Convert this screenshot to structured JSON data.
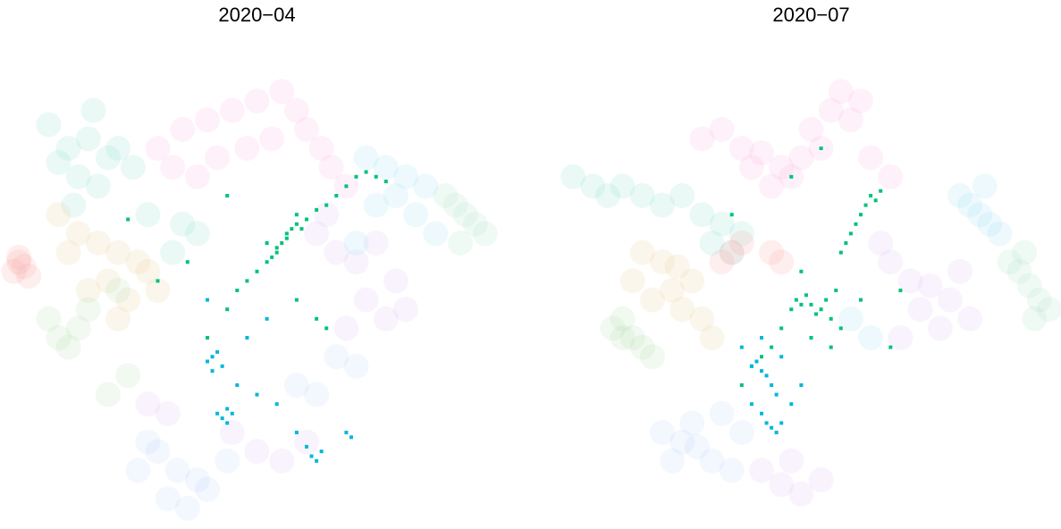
{
  "chart_data": [
    {
      "type": "scatter",
      "title": "2020−04",
      "xlim": [
        0,
        100
      ],
      "ylim": [
        0,
        100
      ],
      "series": [
        {
          "color": "#7fdcc8",
          "opacity": 0.16,
          "x": [
            8,
            12,
            16,
            20,
            14,
            18,
            10,
            22,
            25,
            17,
            13,
            28,
            35,
            38,
            33
          ],
          "y": [
            85,
            80,
            82,
            78,
            74,
            72,
            77,
            80,
            76,
            88,
            68,
            66,
            64,
            62,
            58
          ]
        },
        {
          "color": "#f7a8e0",
          "opacity": 0.16,
          "x": [
            30,
            35,
            40,
            45,
            50,
            55,
            58,
            60,
            42,
            48,
            38,
            53,
            63,
            65,
            68,
            33
          ],
          "y": [
            80,
            84,
            86,
            88,
            90,
            92,
            88,
            84,
            78,
            80,
            74,
            82,
            80,
            76,
            72,
            76
          ]
        },
        {
          "color": "#e8c48a",
          "opacity": 0.16,
          "x": [
            10,
            14,
            18,
            22,
            26,
            20,
            16,
            24,
            28,
            12,
            30,
            22
          ],
          "y": [
            66,
            62,
            60,
            58,
            56,
            52,
            50,
            48,
            54,
            58,
            50,
            44
          ]
        },
        {
          "color": "#a8dca0",
          "opacity": 0.16,
          "x": [
            8,
            10,
            12,
            14,
            16,
            22,
            24,
            20
          ],
          "y": [
            44,
            40,
            38,
            42,
            46,
            50,
            32,
            28
          ]
        },
        {
          "color": "#f8a8a8",
          "opacity": 0.2,
          "x": [
            1,
            2,
            3,
            4,
            2
          ],
          "y": [
            54,
            56,
            55,
            53,
            57
          ]
        },
        {
          "color": "#dcb4f4",
          "opacity": 0.16,
          "x": [
            62,
            66,
            70,
            74,
            78,
            72,
            76,
            80,
            68,
            64,
            45,
            50,
            55,
            60,
            28,
            32
          ],
          "y": [
            62,
            58,
            56,
            60,
            52,
            48,
            44,
            46,
            42,
            66,
            20,
            16,
            14,
            18,
            26,
            24
          ]
        },
        {
          "color": "#90d8f0",
          "opacity": 0.16,
          "x": [
            72,
            76,
            80,
            84,
            78,
            82,
            74,
            70,
            86
          ],
          "y": [
            78,
            76,
            74,
            72,
            70,
            66,
            68,
            60,
            62
          ]
        },
        {
          "color": "#a0e0c0",
          "opacity": 0.16,
          "x": [
            88,
            90,
            92,
            94,
            96,
            91
          ],
          "y": [
            70,
            68,
            66,
            64,
            62,
            60
          ]
        },
        {
          "color": "#b4ccf8",
          "opacity": 0.16,
          "x": [
            30,
            34,
            38,
            32,
            36,
            28,
            40,
            44,
            26,
            58,
            62,
            66,
            70
          ],
          "y": [
            16,
            12,
            10,
            6,
            4,
            18,
            8,
            14,
            12,
            30,
            28,
            36,
            34
          ]
        },
        {
          "color": "#00c27a",
          "opacity": 1,
          "x": [
            52,
            53,
            54,
            55,
            56,
            57,
            58,
            59,
            60,
            54,
            50,
            48,
            46,
            52,
            56,
            58,
            62,
            64,
            66,
            68,
            70,
            72,
            74,
            76,
            44,
            40,
            36,
            30,
            24,
            44,
            58,
            62,
            64
          ],
          "y": [
            56,
            57,
            59,
            60,
            62,
            63,
            64,
            63,
            65,
            58,
            54,
            52,
            50,
            60,
            61,
            66,
            67,
            68,
            70,
            72,
            74,
            75,
            74,
            73,
            46,
            40,
            56,
            52,
            65,
            70,
            48,
            44,
            42
          ]
        },
        {
          "color": "#00b8d8",
          "opacity": 1,
          "x": [
            40,
            41,
            42,
            43,
            41,
            42,
            43,
            44,
            45,
            44,
            46,
            50,
            54,
            58,
            60,
            61,
            62,
            63,
            68,
            69,
            48,
            52,
            40
          ],
          "y": [
            35,
            36,
            37,
            34,
            33,
            24,
            23,
            22,
            24,
            25,
            30,
            28,
            26,
            20,
            17,
            15,
            14,
            16,
            20,
            19,
            40,
            44,
            48
          ]
        }
      ]
    },
    {
      "type": "scatter",
      "title": "2020−07",
      "xlim": [
        0,
        100
      ],
      "ylim": [
        0,
        100
      ],
      "series": [
        {
          "color": "#7fdcc8",
          "opacity": 0.16,
          "x": [
            2,
            6,
            9,
            12,
            16,
            20,
            24,
            28,
            32,
            36,
            34,
            30
          ],
          "y": [
            74,
            72,
            70,
            72,
            70,
            68,
            70,
            66,
            64,
            62,
            58,
            60
          ]
        },
        {
          "color": "#f7a8e0",
          "opacity": 0.16,
          "x": [
            28,
            32,
            36,
            40,
            44,
            48,
            52,
            56,
            60,
            58,
            54,
            50,
            46,
            42,
            38,
            62,
            66
          ],
          "y": [
            82,
            84,
            80,
            79,
            76,
            78,
            80,
            92,
            90,
            86,
            88,
            84,
            74,
            72,
            76,
            78,
            74
          ]
        },
        {
          "color": "#e8c48a",
          "opacity": 0.16,
          "x": [
            16,
            20,
            23,
            26,
            22,
            18,
            24,
            28,
            14,
            30
          ],
          "y": [
            58,
            56,
            55,
            52,
            50,
            48,
            46,
            44,
            52,
            40
          ]
        },
        {
          "color": "#a8dca0",
          "opacity": 0.16,
          "x": [
            10,
            12,
            14,
            16,
            18,
            12
          ],
          "y": [
            42,
            40,
            40,
            38,
            36,
            44
          ]
        },
        {
          "color": "#f8a8a8",
          "opacity": 0.2,
          "x": [
            32,
            34,
            36,
            42,
            44
          ],
          "y": [
            56,
            58,
            60,
            58,
            56
          ]
        },
        {
          "color": "#dcb4f4",
          "opacity": 0.16,
          "x": [
            66,
            70,
            74,
            78,
            72,
            76,
            80,
            68,
            64,
            40,
            44,
            48,
            52,
            46,
            82
          ],
          "y": [
            56,
            52,
            51,
            48,
            46,
            42,
            54,
            40,
            60,
            12,
            9,
            7,
            10,
            14,
            44
          ]
        },
        {
          "color": "#90d8f0",
          "opacity": 0.16,
          "x": [
            80,
            82,
            84,
            86,
            88,
            85,
            58,
            62
          ],
          "y": [
            70,
            68,
            66,
            64,
            62,
            72,
            44,
            40
          ]
        },
        {
          "color": "#a0e0c0",
          "opacity": 0.16,
          "x": [
            90,
            92,
            94,
            96,
            98,
            95,
            93
          ],
          "y": [
            56,
            54,
            51,
            48,
            46,
            44,
            58
          ]
        },
        {
          "color": "#b4ccf8",
          "opacity": 0.16,
          "x": [
            20,
            24,
            27,
            30,
            34,
            22,
            26,
            32,
            36
          ],
          "y": [
            20,
            18,
            17,
            14,
            12,
            14,
            22,
            24,
            20
          ]
        },
        {
          "color": "#00c27a",
          "opacity": 1,
          "x": [
            46,
            47,
            48,
            49,
            50,
            51,
            52,
            53,
            54,
            55,
            56,
            57,
            58,
            59,
            60,
            61,
            62,
            63,
            64,
            44,
            42,
            40,
            38,
            36,
            50,
            54,
            48,
            56,
            60,
            66,
            68,
            34,
            46,
            52
          ],
          "y": [
            46,
            48,
            47,
            49,
            47,
            45,
            46,
            48,
            44,
            50,
            58,
            60,
            62,
            64,
            66,
            68,
            70,
            69,
            71,
            42,
            38,
            36,
            34,
            30,
            40,
            38,
            54,
            42,
            48,
            38,
            50,
            66,
            74,
            80
          ]
        },
        {
          "color": "#00b8d8",
          "opacity": 1,
          "x": [
            38,
            39,
            40,
            41,
            42,
            43,
            40,
            41,
            42,
            43,
            44,
            38,
            36,
            46,
            48,
            44,
            40
          ],
          "y": [
            34,
            35,
            33,
            32,
            30,
            28,
            24,
            22,
            21,
            20,
            22,
            26,
            38,
            26,
            30,
            36,
            40
          ]
        }
      ]
    }
  ]
}
